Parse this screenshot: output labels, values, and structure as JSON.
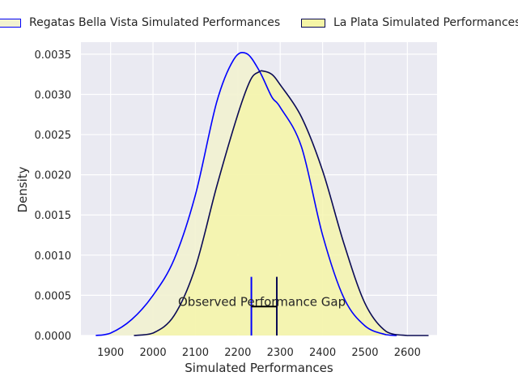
{
  "chart_data": {
    "type": "area",
    "xlabel": "Simulated Performances",
    "ylabel": "Density",
    "xlim": [
      1830,
      2670
    ],
    "ylim": [
      0,
      0.00365
    ],
    "x_ticks": [
      1900,
      2000,
      2100,
      2200,
      2300,
      2400,
      2500,
      2600
    ],
    "y_ticks": [
      0.0,
      0.0005,
      0.001,
      0.0015,
      0.002,
      0.0025,
      0.003,
      0.0035
    ],
    "x_tick_labels": [
      "1900",
      "2000",
      "2100",
      "2200",
      "2300",
      "2400",
      "2500",
      "2600"
    ],
    "y_tick_labels": [
      "0.0000",
      "0.0005",
      "0.0010",
      "0.0015",
      "0.0020",
      "0.0025",
      "0.0030",
      "0.0035"
    ],
    "grid": true,
    "legend_placement": "top",
    "series": [
      {
        "name": "Regatas Bella Vista Simulated Performances",
        "line_color": "#0000ff",
        "fill_color": "#f2f2d0",
        "x": [
          1865,
          1900,
          1950,
          2000,
          2050,
          2100,
          2150,
          2190,
          2220,
          2250,
          2280,
          2300,
          2350,
          2400,
          2450,
          2500,
          2550,
          2575
        ],
        "y": [
          0.0,
          3e-05,
          0.0002,
          0.0005,
          0.00095,
          0.00175,
          0.0029,
          0.00343,
          0.00351,
          0.0033,
          0.00297,
          0.00284,
          0.00235,
          0.00125,
          0.00047,
          0.00012,
          1e-05,
          0.0
        ]
      },
      {
        "name": "La Plata Simulated Performances",
        "line_color": "#0b0b55",
        "fill_color": "#f5f5a6",
        "x": [
          1955,
          2000,
          2050,
          2100,
          2150,
          2200,
          2230,
          2250,
          2260,
          2280,
          2300,
          2350,
          2400,
          2450,
          2500,
          2550,
          2600,
          2650
        ],
        "y": [
          0.0,
          3e-05,
          0.00025,
          0.00085,
          0.00185,
          0.00275,
          0.00318,
          0.00328,
          0.00329,
          0.00325,
          0.00312,
          0.00272,
          0.00205,
          0.00115,
          0.0004,
          5e-05,
          0.0,
          0.0
        ]
      }
    ],
    "annotations": [
      {
        "text": "Observed Performance Gap",
        "text_x": 2230,
        "text_y": 0.00042,
        "bracket_x": [
          2232,
          2292
        ],
        "bracket_y": [
          0.0,
          0.00073
        ],
        "bracket_mid_y": 0.00036,
        "left_color": "#0000ff",
        "right_color": "#0b0b55"
      }
    ]
  }
}
